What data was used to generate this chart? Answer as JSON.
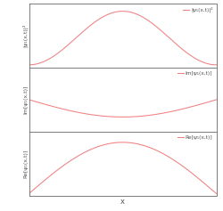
{
  "title_x": "x",
  "ylabel_top": "|ψ₁(x,t)|²",
  "ylabel_mid": "Im[ψ₁(x,t)]",
  "ylabel_bot": "Re[ψ₁(x,t)]",
  "legend_top": "|ψ₁(x,t)|²",
  "legend_mid": "Im[ψ₁(x,t)]",
  "legend_bot": "Re[ψ₁(x,t)]",
  "line_color": "#f08080",
  "background_color": "#ffffff",
  "border_color": "#666666",
  "label_color": "#555555",
  "fontsize_ylabel": 4.5,
  "fontsize_legend": 4.2,
  "fontsize_xlabel": 6.0,
  "linewidth": 0.75,
  "t_phase": 0.3
}
